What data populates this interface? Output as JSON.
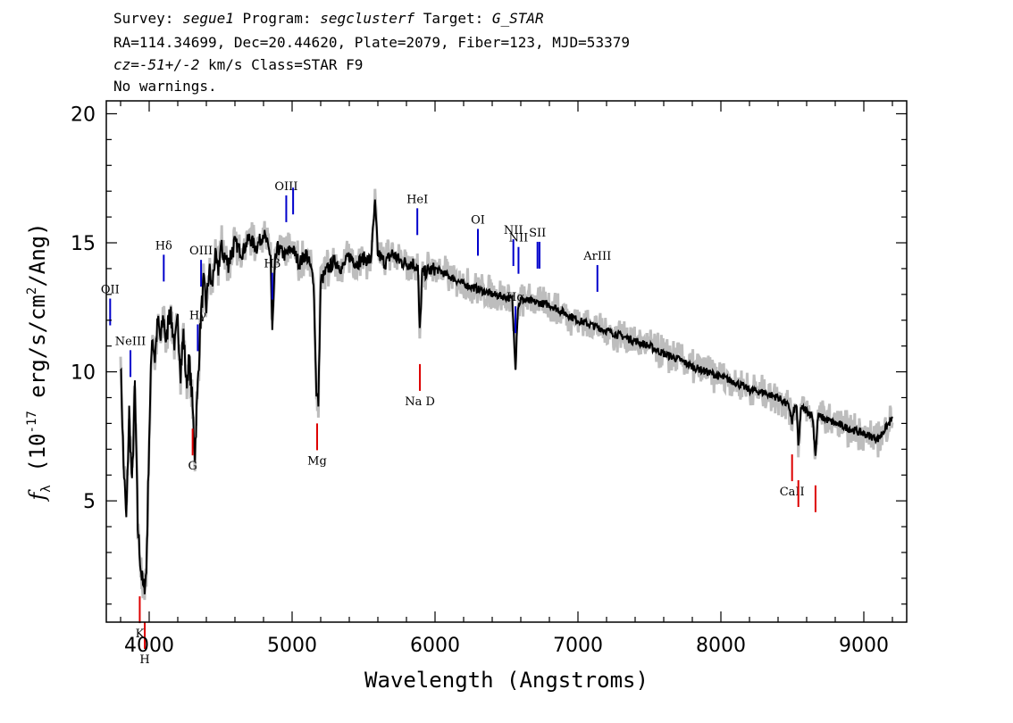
{
  "header": {
    "line1": {
      "survey_label": "Survey: ",
      "survey": "segue1",
      "program_label": " Program: ",
      "program": "segclusterf",
      "target_label": " Target: ",
      "target": "G_STAR"
    },
    "line2": "RA=114.34699, Dec=20.44620, Plate=2079, Fiber=123, MJD=53379",
    "line3": {
      "cz_label": "cz=",
      "cz_value": "-51+/-2",
      "cz_unit": " km/s Class=STAR F9"
    },
    "line4": "No warnings."
  },
  "chart_data": {
    "type": "line",
    "xlabel": "Wavelength (Angstroms)",
    "ylabel": "f_λ (10^-17 erg/s/cm^2/Ang)",
    "xlim": [
      3700,
      9300
    ],
    "ylim": [
      0.3,
      20.5
    ],
    "xticks": [
      4000,
      5000,
      6000,
      7000,
      8000,
      9000
    ],
    "yticks": [
      5,
      10,
      15,
      20
    ],
    "series": [
      {
        "color": "#000000",
        "x": [
          3800,
          3820,
          3840,
          3860,
          3880,
          3900,
          3920,
          3940,
          3960,
          3980,
          4000,
          4020,
          4040,
          4060,
          4080,
          4100,
          4120,
          4140,
          4160,
          4180,
          4200,
          4220,
          4240,
          4260,
          4280,
          4300,
          4320,
          4340,
          4360,
          4380,
          4400,
          4420,
          4440,
          4460,
          4480,
          4500,
          4550,
          4600,
          4650,
          4700,
          4750,
          4800,
          4850,
          4861,
          4880,
          4900,
          4950,
          5000,
          5050,
          5100,
          5150,
          5170,
          5184,
          5200,
          5250,
          5300,
          5350,
          5400,
          5450,
          5500,
          5550,
          5580,
          5600,
          5650,
          5700,
          5750,
          5800,
          5850,
          5880,
          5893,
          5910,
          5950,
          6000,
          6100,
          6200,
          6300,
          6400,
          6500,
          6540,
          6563,
          6580,
          6600,
          6700,
          6800,
          6900,
          7000,
          7100,
          7200,
          7300,
          7400,
          7500,
          7600,
          7700,
          7800,
          7900,
          8000,
          8100,
          8200,
          8300,
          8400,
          8450,
          8480,
          8498,
          8510,
          8530,
          8542,
          8560,
          8600,
          8640,
          8662,
          8680,
          8720,
          8800,
          8900,
          9000,
          9100,
          9200
        ],
        "y": [
          10.5,
          6.5,
          4.2,
          8.5,
          5.5,
          9.5,
          4.0,
          2.5,
          1.5,
          2.2,
          7.5,
          11.5,
          10.5,
          12.0,
          11.2,
          12.2,
          11.0,
          12.5,
          11.8,
          11.0,
          12.0,
          10.0,
          11.5,
          9.5,
          10.5,
          9.0,
          6.8,
          9.5,
          12.0,
          13.5,
          12.5,
          14.0,
          13.2,
          14.5,
          13.8,
          14.8,
          14.2,
          15.0,
          14.6,
          15.2,
          14.8,
          15.4,
          14.5,
          11.5,
          14.2,
          14.8,
          14.5,
          14.8,
          14.2,
          14.6,
          13.6,
          9.2,
          8.8,
          13.5,
          14.0,
          14.3,
          14.0,
          14.5,
          14.2,
          14.4,
          14.3,
          16.5,
          14.6,
          14.2,
          14.6,
          14.3,
          14.2,
          14.2,
          14.0,
          11.5,
          13.8,
          13.9,
          14.0,
          13.7,
          13.4,
          13.2,
          13.0,
          12.9,
          12.8,
          10.2,
          12.5,
          12.8,
          12.7,
          12.6,
          12.3,
          12.0,
          11.8,
          11.6,
          11.4,
          11.2,
          11.0,
          10.7,
          10.5,
          10.2,
          10.0,
          9.8,
          9.6,
          9.3,
          9.2,
          9.0,
          8.8,
          8.6,
          8.0,
          8.5,
          8.7,
          7.0,
          8.6,
          8.5,
          8.3,
          6.8,
          8.3,
          8.2,
          8.0,
          7.8,
          7.6,
          7.4,
          8.2
        ]
      }
    ],
    "emission_lines": [
      {
        "label": "OII",
        "x": 3727
      },
      {
        "label": "NeIII",
        "x": 3869
      },
      {
        "label": "Hδ",
        "x": 4102
      },
      {
        "label": "Hγ",
        "x": 4340
      },
      {
        "label": "OIII",
        "x": 4363
      },
      {
        "label": "Hβ",
        "x": 4861
      },
      {
        "label": "OIII",
        "x": 4959
      },
      {
        "label": "",
        "x": 5007
      },
      {
        "label": "HeI",
        "x": 5876
      },
      {
        "label": "OI",
        "x": 6300
      },
      {
        "label": "NII",
        "x": 6548
      },
      {
        "label": "Hα",
        "x": 6563
      },
      {
        "label": "NII",
        "x": 6584
      },
      {
        "label": "SII",
        "x": 6717
      },
      {
        "label": "",
        "x": 6731
      },
      {
        "label": "ArIII",
        "x": 7136
      }
    ],
    "absorption_lines": [
      {
        "label": "K",
        "x": 3934
      },
      {
        "label": "H",
        "x": 3969
      },
      {
        "label": "G",
        "x": 4304
      },
      {
        "label": "Mg",
        "x": 5175
      },
      {
        "label": "Na D",
        "x": 5894
      },
      {
        "label": "CaII",
        "x": 8498
      },
      {
        "label": "",
        "x": 8542
      },
      {
        "label": "",
        "x": 8662
      }
    ]
  }
}
